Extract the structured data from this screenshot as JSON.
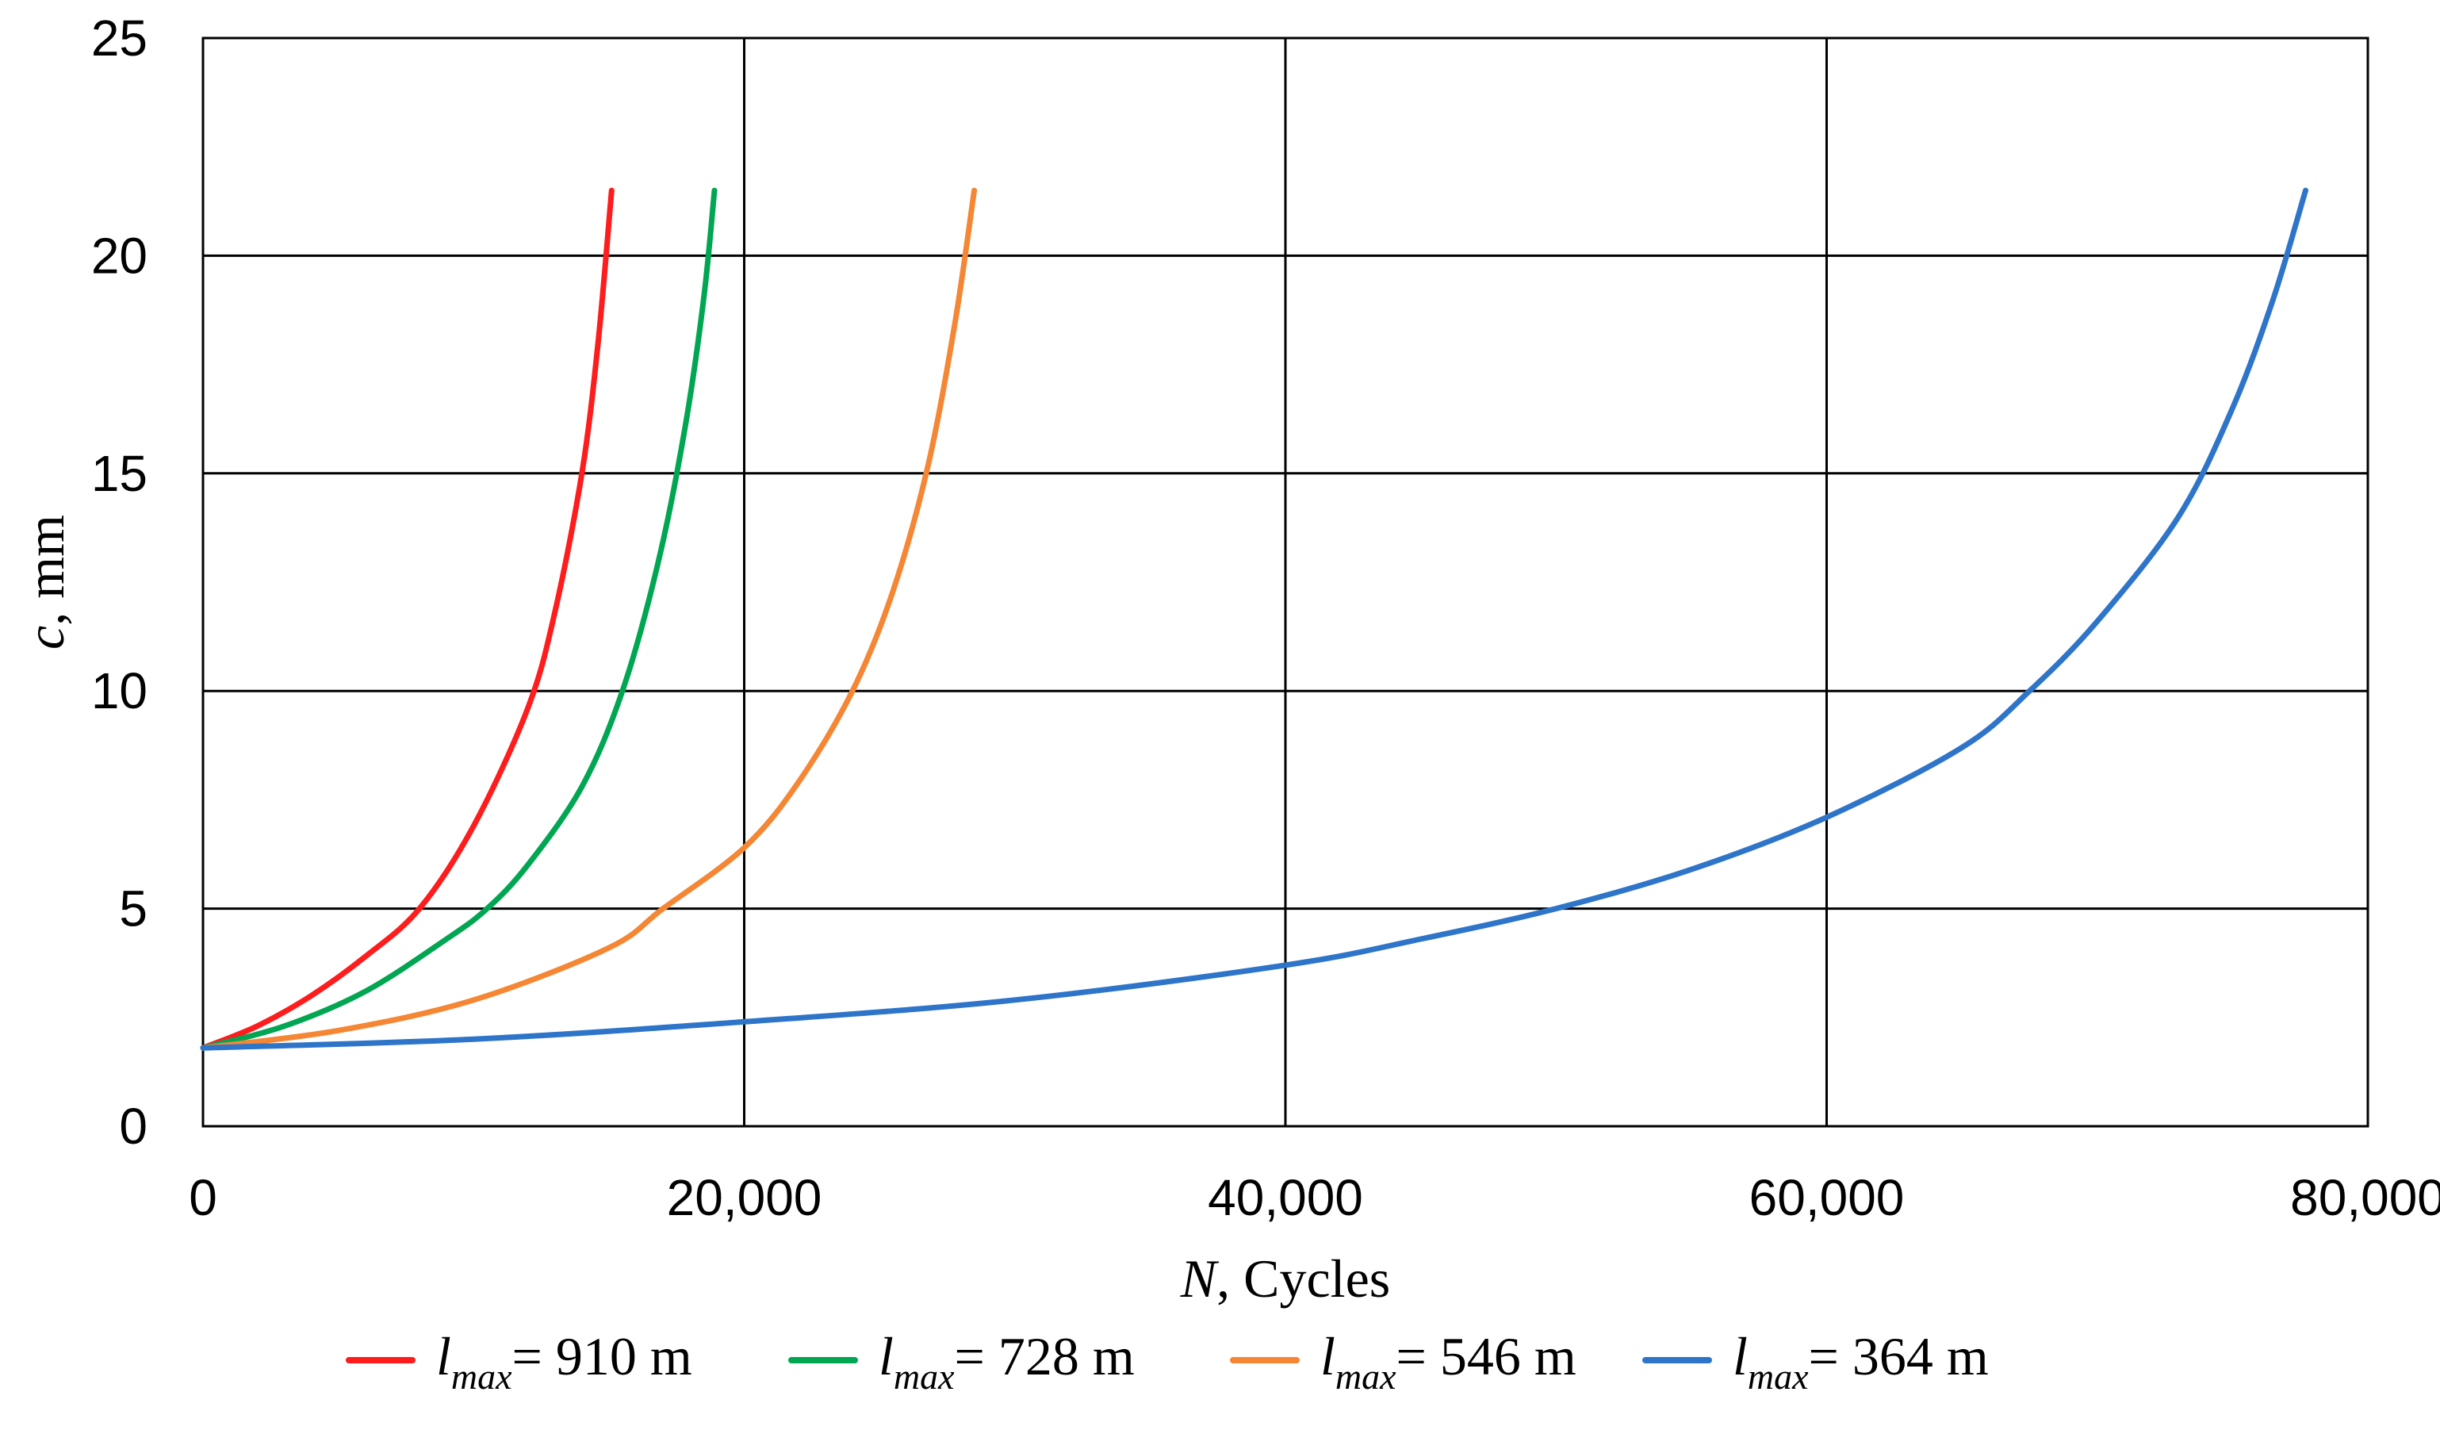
{
  "chart_data": {
    "type": "line",
    "title": "",
    "xlabel_var": "N",
    "xlabel_rest": ", Cycles",
    "ylabel_var": "c",
    "ylabel_rest": ", mm",
    "xlim": [
      0,
      80000
    ],
    "ylim": [
      0,
      25
    ],
    "grid": true,
    "legend_position": "bottom",
    "x_ticks": [
      {
        "value": 0,
        "label": "0"
      },
      {
        "value": 20000,
        "label": "20,000"
      },
      {
        "value": 40000,
        "label": "40,000"
      },
      {
        "value": 60000,
        "label": "60,000"
      },
      {
        "value": 80000,
        "label": "80,000"
      }
    ],
    "y_ticks": [
      {
        "value": 0,
        "label": "0"
      },
      {
        "value": 5,
        "label": "5"
      },
      {
        "value": 10,
        "label": "10"
      },
      {
        "value": 15,
        "label": "15"
      },
      {
        "value": 20,
        "label": "20"
      },
      {
        "value": 25,
        "label": "25"
      }
    ],
    "series": [
      {
        "name": "l_max = 910 m",
        "legend_var": "l",
        "legend_sub": "max",
        "legend_rest": "= 910 m",
        "color": "#ff1c1c",
        "x": [
          0,
          2000,
          4000,
          6000,
          8000,
          10000,
          12000,
          13000,
          14000,
          14600,
          15100
        ],
        "y": [
          1.8,
          2.3,
          3.0,
          3.9,
          5.0,
          6.9,
          9.6,
          11.8,
          15.0,
          18.0,
          21.5
        ]
      },
      {
        "name": "l_max = 728 m",
        "legend_var": "l",
        "legend_sub": "max",
        "legend_rest": "= 728 m",
        "color": "#00a651",
        "x": [
          0,
          3000,
          6000,
          9000,
          10500,
          12000,
          14000,
          15500,
          16800,
          17800,
          18500,
          18900
        ],
        "y": [
          1.8,
          2.3,
          3.1,
          4.3,
          5.0,
          6.0,
          7.8,
          10.0,
          12.9,
          16.0,
          19.0,
          21.5
        ]
      },
      {
        "name": "l_max = 546 m",
        "legend_var": "l",
        "legend_sub": "max",
        "legend_rest": "= 546 m",
        "color": "#f58634",
        "x": [
          0,
          5000,
          10000,
          15000,
          17000,
          20000,
          22000,
          24000,
          25500,
          26800,
          27800,
          28500
        ],
        "y": [
          1.8,
          2.2,
          2.9,
          4.1,
          5.0,
          6.4,
          7.9,
          10.0,
          12.3,
          15.2,
          18.5,
          21.5
        ]
      },
      {
        "name": "l_max = 364 m",
        "legend_var": "l",
        "legend_sub": "max",
        "legend_rest": "= 364 m",
        "color": "#2e75c9",
        "x": [
          0,
          10000,
          20000,
          30000,
          40000,
          45000,
          50000,
          55000,
          60000,
          65000,
          67500,
          70000,
          73000,
          75000,
          76500,
          77700
        ],
        "y": [
          1.8,
          2.0,
          2.4,
          2.9,
          3.7,
          4.3,
          5.0,
          5.9,
          7.1,
          8.7,
          10.0,
          11.6,
          14.0,
          16.5,
          19.0,
          21.5
        ]
      }
    ]
  }
}
